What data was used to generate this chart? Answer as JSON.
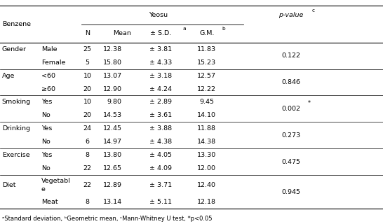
{
  "title": "Yeosu",
  "p_value_header": "p-value",
  "p_value_header_sup": "c",
  "benzene_label": "Benzene",
  "col_N": "N",
  "col_Mean": "Mean",
  "col_SD": "± S.D.",
  "col_SD_sup": "a",
  "col_GM": "G.M.",
  "col_GM_sup": "b",
  "rows": [
    {
      "category": "Gender",
      "subcategory": "Male",
      "N": "25",
      "Mean": "12.38",
      "SD": "± 3.81",
      "GM": "11.83",
      "pvalue": "0.122",
      "pstar": false
    },
    {
      "category": "",
      "subcategory": "Female",
      "N": "5",
      "Mean": "15.80",
      "SD": "± 4.33",
      "GM": "15.23",
      "pvalue": "",
      "pstar": false
    },
    {
      "category": "Age",
      "subcategory": "<60",
      "N": "10",
      "Mean": "13.07",
      "SD": "± 3.18",
      "GM": "12.57",
      "pvalue": "0.846",
      "pstar": false
    },
    {
      "category": "",
      "subcategory": "≥60",
      "N": "20",
      "Mean": "12.90",
      "SD": "± 4.24",
      "GM": "12.22",
      "pvalue": "",
      "pstar": false
    },
    {
      "category": "Smoking",
      "subcategory": "Yes",
      "N": "10",
      "Mean": "9.80",
      "SD": "± 2.89",
      "GM": "9.45",
      "pvalue": "0.002",
      "pstar": true
    },
    {
      "category": "",
      "subcategory": "No",
      "N": "20",
      "Mean": "14.53",
      "SD": "± 3.61",
      "GM": "14.10",
      "pvalue": "",
      "pstar": false
    },
    {
      "category": "Drinking",
      "subcategory": "Yes",
      "N": "24",
      "Mean": "12.45",
      "SD": "± 3.88",
      "GM": "11.88",
      "pvalue": "0.273",
      "pstar": false
    },
    {
      "category": "",
      "subcategory": "No",
      "N": "6",
      "Mean": "14.97",
      "SD": "± 4.38",
      "GM": "14.38",
      "pvalue": "",
      "pstar": false
    },
    {
      "category": "Exercise",
      "subcategory": "Yes",
      "N": "8",
      "Mean": "13.80",
      "SD": "± 4.05",
      "GM": "13.30",
      "pvalue": "0.475",
      "pstar": false
    },
    {
      "category": "",
      "subcategory": "No",
      "N": "22",
      "Mean": "12.65",
      "SD": "± 4.09",
      "GM": "12.00",
      "pvalue": "",
      "pstar": false
    },
    {
      "category": "Diet",
      "subcategory": "Vegetabl\ne",
      "N": "22",
      "Mean": "12.89",
      "SD": "± 3.71",
      "GM": "12.40",
      "pvalue": "0.945",
      "pstar": false
    },
    {
      "category": "",
      "subcategory": "Meat",
      "N": "8",
      "Mean": "13.14",
      "SD": "± 5.11",
      "GM": "12.18",
      "pvalue": "",
      "pstar": false
    }
  ],
  "footnote": "ᵃStandard deviation, ᵇGeometric mean, ᶜMann-Whitney U test, *p<0.05",
  "font_size": 6.8,
  "footnote_font_size": 6.0,
  "bg_color": "white",
  "line_color": "black"
}
